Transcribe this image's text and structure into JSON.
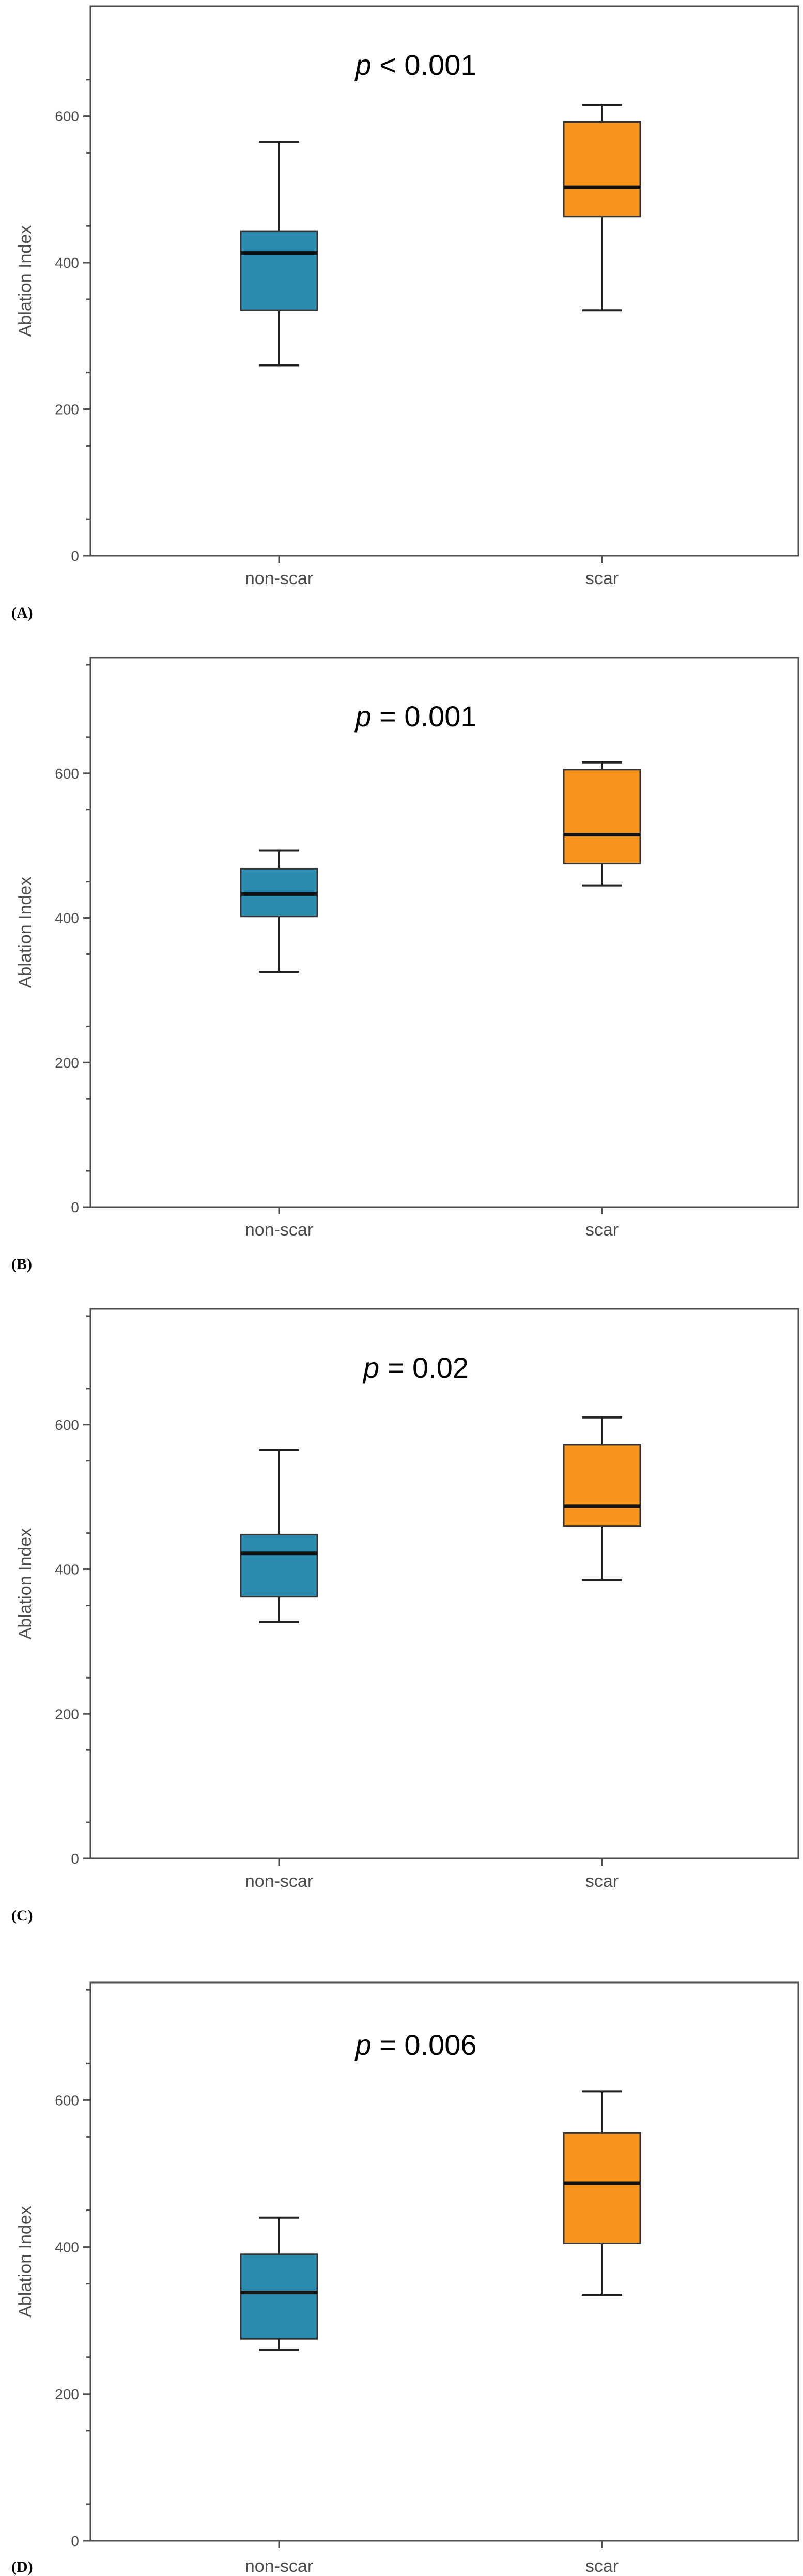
{
  "chart_data": [
    {
      "type": "box",
      "panel_label": "(A)",
      "annotation": {
        "prefix": "p",
        "text": " < 0.001"
      },
      "ylabel": "Ablation Index",
      "ylim": [
        0,
        750
      ],
      "yticks": [
        0,
        200,
        400,
        600
      ],
      "categories": [
        "non-scar",
        "scar"
      ],
      "colors": [
        "#2B8CB0",
        "#F7941D"
      ],
      "boxes": [
        {
          "min": 260,
          "q1": 335,
          "median": 413,
          "q3": 443,
          "max": 565
        },
        {
          "min": 335,
          "q1": 463,
          "median": 503,
          "q3": 592,
          "max": 615
        }
      ]
    },
    {
      "type": "box",
      "panel_label": "(B)",
      "annotation": {
        "prefix": "p",
        "text": " = 0.001"
      },
      "ylabel": "Ablation Index",
      "ylim": [
        0,
        760
      ],
      "yticks": [
        0,
        200,
        400,
        600
      ],
      "categories": [
        "non-scar",
        "scar"
      ],
      "colors": [
        "#2B8CB0",
        "#F7941D"
      ],
      "boxes": [
        {
          "min": 325,
          "q1": 402,
          "median": 433,
          "q3": 468,
          "max": 493
        },
        {
          "min": 445,
          "q1": 475,
          "median": 515,
          "q3": 605,
          "max": 615
        }
      ]
    },
    {
      "type": "box",
      "panel_label": "(C)",
      "annotation": {
        "prefix": "p",
        "text": " = 0.02"
      },
      "ylabel": "Ablation Index",
      "ylim": [
        0,
        760
      ],
      "yticks": [
        0,
        200,
        400,
        600
      ],
      "categories": [
        "non-scar",
        "scar"
      ],
      "colors": [
        "#2B8CB0",
        "#F7941D"
      ],
      "boxes": [
        {
          "min": 327,
          "q1": 362,
          "median": 422,
          "q3": 448,
          "max": 565
        },
        {
          "min": 385,
          "q1": 460,
          "median": 487,
          "q3": 572,
          "max": 610
        }
      ]
    },
    {
      "type": "box",
      "panel_label": "(D)",
      "annotation": {
        "prefix": "p",
        "text": " = 0.006"
      },
      "ylabel": "Ablation Index",
      "ylim": [
        0,
        760
      ],
      "yticks": [
        0,
        200,
        400,
        600
      ],
      "categories": [
        "non-scar",
        "scar"
      ],
      "colors": [
        "#2B8CB0",
        "#F7941D"
      ],
      "boxes": [
        {
          "min": 260,
          "q1": 275,
          "median": 338,
          "q3": 390,
          "max": 440
        },
        {
          "min": 335,
          "q1": 405,
          "median": 487,
          "q3": 555,
          "max": 612
        }
      ]
    }
  ]
}
